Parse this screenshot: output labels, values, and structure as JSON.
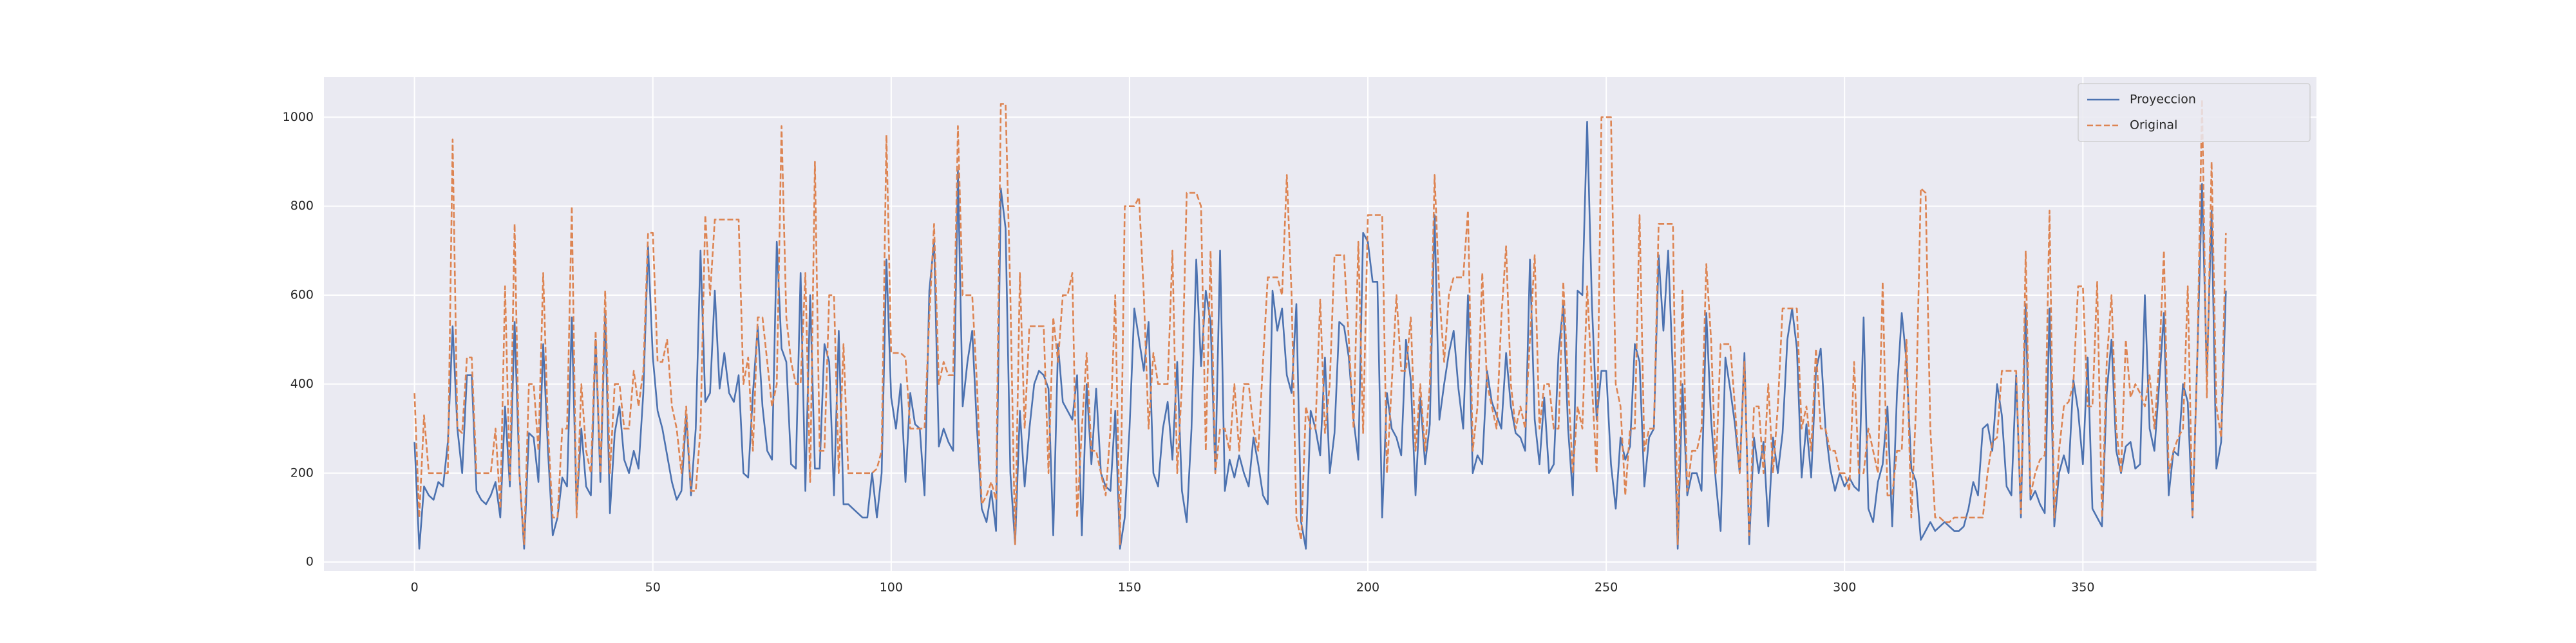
{
  "chart_data": {
    "type": "line",
    "x": [
      0,
      1,
      2,
      3,
      4,
      5,
      6,
      7,
      8,
      9,
      10,
      11,
      12,
      13,
      14,
      15,
      16,
      17,
      18,
      19,
      20,
      21,
      22,
      23,
      24,
      25,
      26,
      27,
      28,
      29,
      30,
      31,
      32,
      33,
      34,
      35,
      36,
      37,
      38,
      39,
      40,
      41,
      42,
      43,
      44,
      45,
      46,
      47,
      48,
      49,
      50,
      51,
      52,
      53,
      54,
      55,
      56,
      57,
      58,
      59,
      60,
      61,
      62,
      63,
      64,
      65,
      66,
      67,
      68,
      69,
      70,
      71,
      72,
      73,
      74,
      75,
      76,
      77,
      78,
      79,
      80,
      81,
      82,
      83,
      84,
      85,
      86,
      87,
      88,
      89,
      90,
      91,
      92,
      93,
      94,
      95,
      96,
      97,
      98,
      99,
      100,
      101,
      102,
      103,
      104,
      105,
      106,
      107,
      108,
      109,
      110,
      111,
      112,
      113,
      114,
      115,
      116,
      117,
      118,
      119,
      120,
      121,
      122,
      123,
      124,
      125,
      126,
      127,
      128,
      129,
      130,
      131,
      132,
      133,
      134,
      135,
      136,
      137,
      138,
      139,
      140,
      141,
      142,
      143,
      144,
      145,
      146,
      147,
      148,
      149,
      150,
      151,
      152,
      153,
      154,
      155,
      156,
      157,
      158,
      159,
      160,
      161,
      162,
      163,
      164,
      165,
      166,
      167,
      168,
      169,
      170,
      171,
      172,
      173,
      174,
      175,
      176,
      177,
      178,
      179,
      180,
      181,
      182,
      183,
      184,
      185,
      186,
      187,
      188,
      189,
      190,
      191,
      192,
      193,
      194,
      195,
      196,
      197,
      198,
      199,
      200,
      201,
      202,
      203,
      204,
      205,
      206,
      207,
      208,
      209,
      210,
      211,
      212,
      213,
      214,
      215,
      216,
      217,
      218,
      219,
      220,
      221,
      222,
      223,
      224,
      225,
      226,
      227,
      228,
      229,
      230,
      231,
      232,
      233,
      234,
      235,
      236,
      237,
      238,
      239,
      240,
      241,
      242,
      243,
      244,
      245,
      246,
      247,
      248,
      249,
      250,
      251,
      252,
      253,
      254,
      255,
      256,
      257,
      258,
      259,
      260,
      261,
      262,
      263,
      264,
      265,
      266,
      267,
      268,
      269,
      270,
      271,
      272,
      273,
      274,
      275,
      276,
      277,
      278,
      279,
      280,
      281,
      282,
      283,
      284,
      285,
      286,
      287,
      288,
      289,
      290,
      291,
      292,
      293,
      294,
      295,
      296,
      297,
      298,
      299,
      300,
      301,
      302,
      303,
      304,
      305,
      306,
      307,
      308,
      309,
      310,
      311,
      312,
      313,
      314,
      315,
      316,
      317,
      318,
      319,
      320,
      321,
      322,
      323,
      324,
      325,
      326,
      327,
      328,
      329,
      330,
      331,
      332,
      333,
      334,
      335,
      336,
      337,
      338,
      339,
      340,
      341,
      342,
      343,
      344,
      345,
      346,
      347,
      348,
      349,
      350,
      351,
      352,
      353,
      354,
      355,
      356,
      357,
      358,
      359,
      360,
      361,
      362,
      363,
      364,
      365,
      366,
      367,
      368,
      369,
      370,
      371,
      372,
      373,
      374,
      375,
      376,
      377,
      378,
      379,
      380
    ],
    "series": [
      {
        "name": "Proyeccion",
        "color": "#4c72b0",
        "dash": false,
        "values": [
          270,
          30,
          170,
          150,
          140,
          180,
          170,
          270,
          530,
          300,
          200,
          420,
          420,
          160,
          140,
          130,
          150,
          180,
          100,
          350,
          170,
          540,
          200,
          30,
          290,
          280,
          180,
          490,
          250,
          60,
          100,
          190,
          170,
          550,
          120,
          300,
          170,
          150,
          500,
          180,
          560,
          110,
          290,
          350,
          230,
          200,
          250,
          210,
          380,
          710,
          460,
          340,
          300,
          240,
          180,
          140,
          160,
          330,
          150,
          300,
          700,
          360,
          380,
          610,
          390,
          470,
          380,
          360,
          420,
          200,
          190,
          380,
          530,
          350,
          250,
          230,
          720,
          480,
          450,
          220,
          210,
          650,
          160,
          600,
          210,
          210,
          490,
          450,
          150,
          520,
          130,
          130,
          120,
          110,
          100,
          100,
          200,
          100,
          200,
          680,
          370,
          300,
          400,
          180,
          380,
          310,
          300,
          150,
          610,
          720,
          260,
          300,
          270,
          250,
          880,
          350,
          450,
          520,
          300,
          120,
          90,
          160,
          70,
          840,
          750,
          200,
          40,
          340,
          170,
          300,
          400,
          430,
          420,
          390,
          60,
          490,
          360,
          340,
          320,
          420,
          60,
          400,
          220,
          390,
          200,
          170,
          160,
          340,
          30,
          100,
          300,
          570,
          500,
          430,
          540,
          200,
          170,
          300,
          360,
          230,
          450,
          160,
          90,
          300,
          680,
          440,
          610,
          540,
          200,
          700,
          160,
          230,
          190,
          240,
          200,
          170,
          280,
          220,
          150,
          130,
          610,
          520,
          570,
          420,
          380,
          580,
          90,
          30,
          340,
          300,
          240,
          460,
          200,
          290,
          540,
          530,
          460,
          320,
          230,
          740,
          720,
          630,
          630,
          100,
          380,
          300,
          280,
          240,
          500,
          410,
          150,
          370,
          220,
          310,
          780,
          320,
          400,
          470,
          520,
          390,
          300,
          600,
          200,
          240,
          220,
          430,
          360,
          330,
          300,
          470,
          350,
          290,
          280,
          250,
          680,
          320,
          220,
          370,
          200,
          220,
          470,
          580,
          300,
          150,
          610,
          600,
          990,
          580,
          320,
          430,
          430,
          220,
          120,
          280,
          230,
          260,
          490,
          450,
          170,
          280,
          300,
          690,
          520,
          700,
          420,
          30,
          400,
          150,
          200,
          200,
          160,
          560,
          320,
          180,
          70,
          460,
          390,
          310,
          200,
          470,
          40,
          280,
          200,
          270,
          80,
          280,
          200,
          290,
          500,
          570,
          480,
          190,
          310,
          190,
          430,
          480,
          300,
          210,
          160,
          200,
          170,
          190,
          170,
          160,
          550,
          120,
          90,
          180,
          220,
          350,
          80,
          380,
          560,
          450,
          210,
          180,
          50,
          70,
          90,
          70,
          80,
          90,
          80,
          70,
          70,
          80,
          120,
          180,
          150,
          300,
          310,
          250,
          400,
          330,
          170,
          150,
          420,
          100,
          580,
          140,
          160,
          130,
          110,
          570,
          80,
          200,
          240,
          200,
          410,
          340,
          220,
          460,
          120,
          100,
          80,
          380,
          500,
          250,
          200,
          260,
          270,
          210,
          220,
          600,
          300,
          250,
          400,
          560,
          150,
          250,
          240,
          400,
          360,
          100,
          460,
          850,
          420,
          790,
          210,
          270,
          610
        ]
      },
      {
        "name": "Original",
        "color": "#dd8452",
        "dash": true,
        "values": [
          380,
          100,
          330,
          200,
          200,
          200,
          200,
          200,
          950,
          300,
          290,
          460,
          460,
          200,
          200,
          200,
          200,
          300,
          120,
          620,
          180,
          760,
          200,
          40,
          400,
          400,
          250,
          650,
          300,
          100,
          100,
          300,
          300,
          800,
          100,
          400,
          250,
          200,
          520,
          200,
          610,
          200,
          400,
          400,
          300,
          300,
          430,
          350,
          430,
          740,
          740,
          450,
          450,
          500,
          350,
          300,
          200,
          350,
          160,
          160,
          300,
          780,
          600,
          770,
          770,
          770,
          770,
          770,
          770,
          400,
          460,
          250,
          550,
          550,
          450,
          350,
          400,
          980,
          550,
          450,
          400,
          400,
          650,
          180,
          900,
          250,
          250,
          600,
          600,
          200,
          490,
          200,
          200,
          200,
          200,
          200,
          200,
          210,
          250,
          960,
          470,
          470,
          470,
          460,
          300,
          300,
          300,
          300,
          550,
          760,
          400,
          450,
          420,
          420,
          980,
          600,
          600,
          600,
          400,
          130,
          150,
          180,
          140,
          1030,
          1030,
          600,
          40,
          650,
          300,
          530,
          530,
          530,
          530,
          200,
          550,
          450,
          600,
          600,
          650,
          100,
          300,
          470,
          250,
          250,
          200,
          150,
          300,
          600,
          40,
          800,
          800,
          800,
          820,
          600,
          300,
          470,
          400,
          400,
          400,
          700,
          200,
          400,
          830,
          830,
          830,
          800,
          250,
          700,
          200,
          300,
          300,
          250,
          400,
          250,
          400,
          400,
          300,
          250,
          450,
          640,
          640,
          640,
          600,
          870,
          600,
          100,
          50,
          350,
          300,
          300,
          590,
          290,
          400,
          690,
          690,
          690,
          500,
          300,
          720,
          290,
          780,
          780,
          780,
          780,
          200,
          400,
          600,
          430,
          430,
          550,
          250,
          400,
          250,
          400,
          870,
          600,
          450,
          600,
          640,
          640,
          640,
          790,
          250,
          350,
          650,
          400,
          350,
          300,
          550,
          710,
          400,
          300,
          350,
          300,
          500,
          690,
          300,
          400,
          400,
          300,
          300,
          630,
          400,
          200,
          350,
          300,
          620,
          400,
          200,
          1000,
          1000,
          1000,
          400,
          350,
          150,
          300,
          300,
          780,
          250,
          300,
          300,
          760,
          760,
          760,
          760,
          40,
          610,
          160,
          250,
          250,
          300,
          670,
          500,
          200,
          490,
          490,
          490,
          350,
          200,
          450,
          60,
          350,
          350,
          200,
          400,
          200,
          350,
          570,
          570,
          570,
          570,
          300,
          350,
          250,
          480,
          300,
          300,
          250,
          250,
          200,
          200,
          160,
          450,
          200,
          200,
          300,
          250,
          200,
          630,
          150,
          150,
          250,
          250,
          500,
          100,
          350,
          840,
          830,
          300,
          100,
          100,
          90,
          90,
          100,
          100,
          100,
          100,
          100,
          100,
          100,
          200,
          270,
          280,
          430,
          430,
          430,
          430,
          110,
          700,
          150,
          200,
          230,
          240,
          790,
          100,
          250,
          350,
          360,
          400,
          620,
          620,
          350,
          350,
          630,
          100,
          450,
          600,
          300,
          200,
          500,
          370,
          400,
          380,
          350,
          420,
          300,
          450,
          700,
          200,
          250,
          280,
          300,
          620,
          100,
          460,
          1040,
          370,
          900,
          350,
          280,
          740
        ]
      }
    ],
    "xlim": [
      -19,
      399
    ],
    "ylim": [
      -20,
      1090
    ],
    "xticks": [
      0,
      50,
      100,
      150,
      200,
      250,
      300,
      350
    ],
    "yticks": [
      0,
      200,
      400,
      600,
      800,
      1000
    ],
    "grid": true,
    "legend": "upper right"
  }
}
